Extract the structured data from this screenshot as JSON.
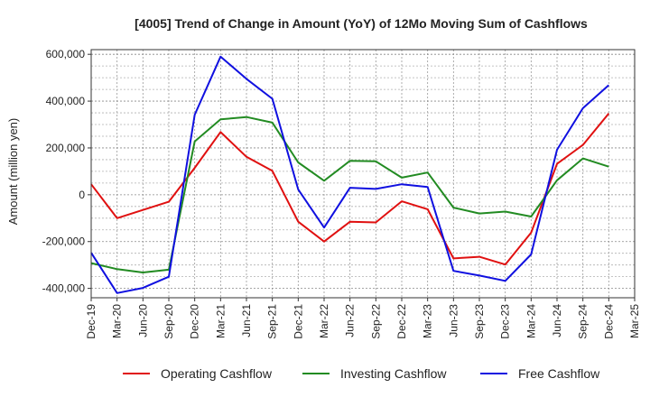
{
  "chart_data": {
    "type": "line",
    "title": "[4005]  Trend of Change in Amount (YoY) of 12Mo Moving Sum of Cashflows",
    "xlabel": "",
    "ylabel": "Amount (million yen)",
    "ylim": [
      -440000,
      620000
    ],
    "yticks": [
      -400000,
      -200000,
      0,
      200000,
      400000,
      600000
    ],
    "ytick_labels": [
      "-400,000",
      "-200,000",
      "0",
      "200,000",
      "400,000",
      "600,000"
    ],
    "categories": [
      "Dec-19",
      "Mar-20",
      "Jun-20",
      "Sep-20",
      "Dec-20",
      "Mar-21",
      "Jun-21",
      "Sep-21",
      "Dec-21",
      "Mar-22",
      "Jun-22",
      "Sep-22",
      "Dec-22",
      "Mar-23",
      "Jun-23",
      "Sep-23",
      "Dec-23",
      "Mar-24",
      "Jun-24",
      "Sep-24",
      "Dec-24",
      "Mar-25"
    ],
    "grid": true,
    "legend_position": "bottom",
    "series": [
      {
        "name": "Operating Cashflow",
        "color": "#e01010",
        "values": [
          45000,
          -100000,
          -65000,
          -30000,
          115000,
          268000,
          162000,
          102000,
          -115000,
          -200000,
          -115000,
          -118000,
          -28000,
          -62000,
          -272000,
          -265000,
          -298000,
          -162000,
          132000,
          213000,
          347000,
          null
        ]
      },
      {
        "name": "Investing Cashflow",
        "color": "#228b22",
        "values": [
          -292000,
          -318000,
          -332000,
          -320000,
          228000,
          322000,
          332000,
          308000,
          138000,
          60000,
          145000,
          143000,
          73000,
          95000,
          -55000,
          -80000,
          -72000,
          -93000,
          62000,
          155000,
          120000,
          null
        ]
      },
      {
        "name": "Free Cashflow",
        "color": "#1010e0",
        "values": [
          -248000,
          -420000,
          -398000,
          -350000,
          342000,
          590000,
          495000,
          410000,
          23000,
          -140000,
          30000,
          25000,
          45000,
          33000,
          -325000,
          -345000,
          -368000,
          -255000,
          192000,
          370000,
          468000,
          null
        ]
      }
    ]
  }
}
